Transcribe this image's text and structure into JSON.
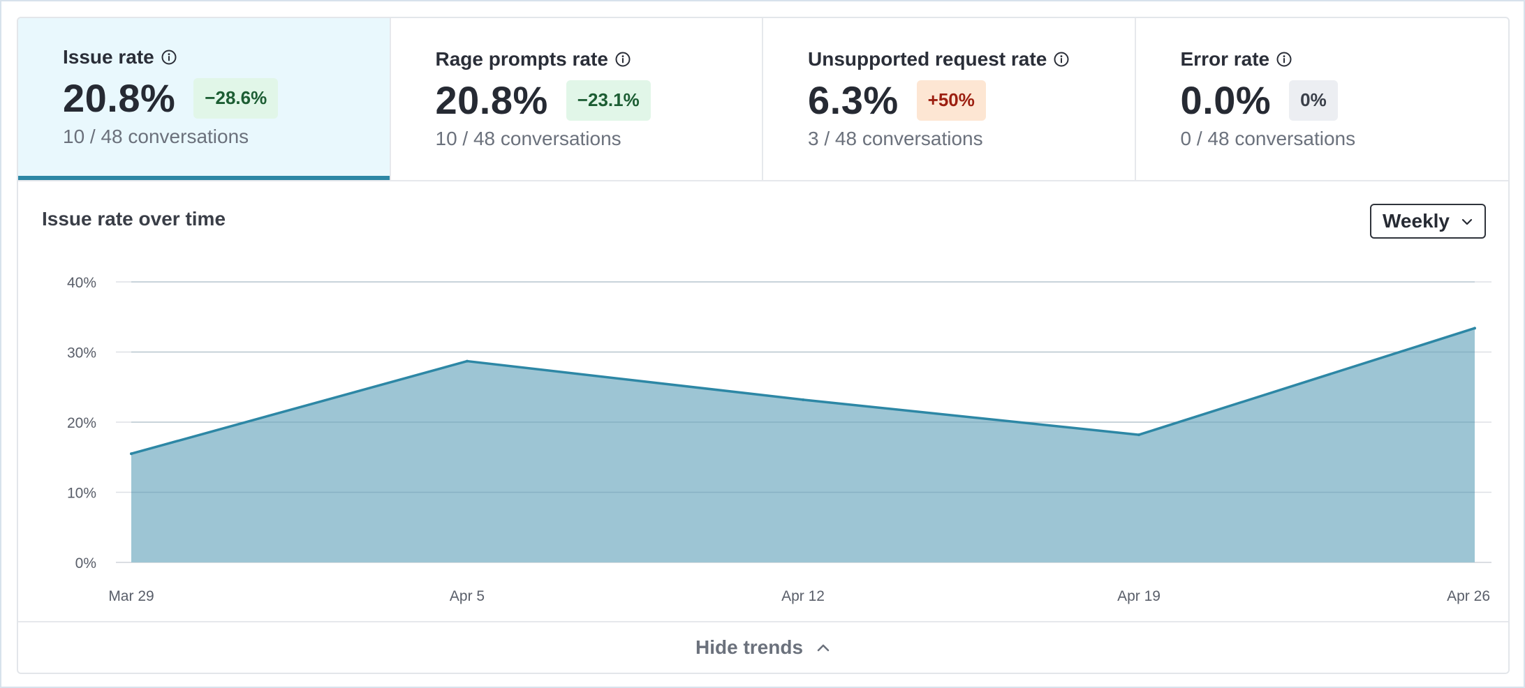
{
  "metrics": [
    {
      "title": "Issue rate",
      "value": "20.8%",
      "change": "−28.6%",
      "change_tone": "good",
      "subtitle": "10 / 48 conversations",
      "active": true
    },
    {
      "title": "Rage prompts rate",
      "value": "20.8%",
      "change": "−23.1%",
      "change_tone": "good",
      "subtitle": "10 / 48 conversations",
      "active": false
    },
    {
      "title": "Unsupported request rate",
      "value": "6.3%",
      "change": "+50%",
      "change_tone": "bad",
      "subtitle": "3 / 48 conversations",
      "active": false
    },
    {
      "title": "Error rate",
      "value": "0.0%",
      "change": "0%",
      "change_tone": "neutral",
      "subtitle": "0 / 48 conversations",
      "active": false
    }
  ],
  "chart_section": {
    "title": "Issue rate over time",
    "period_select": "Weekly"
  },
  "footer": {
    "toggle_label": "Hide trends"
  },
  "colors": {
    "accent": "#2d87a5",
    "area_fill": "#9dc5d4",
    "active_card_bg": "#e9f8fd"
  },
  "icons": {
    "info": "info-circle-icon",
    "select_caret": "chevron-down-icon",
    "collapse": "chevron-up-icon"
  },
  "chart_data": {
    "type": "area",
    "title": "Issue rate over time",
    "x": [
      "Mar 29",
      "Apr 5",
      "Apr 12",
      "Apr 19",
      "Apr 26"
    ],
    "series": [
      {
        "values": [
          15.5,
          28.7,
          23.2,
          18.2,
          33.4
        ]
      }
    ],
    "y_ticks": [
      "0%",
      "10%",
      "20%",
      "30%",
      "40%"
    ],
    "ylim": [
      0,
      40
    ],
    "y_unit": "%",
    "grid": true,
    "legend": "none"
  }
}
